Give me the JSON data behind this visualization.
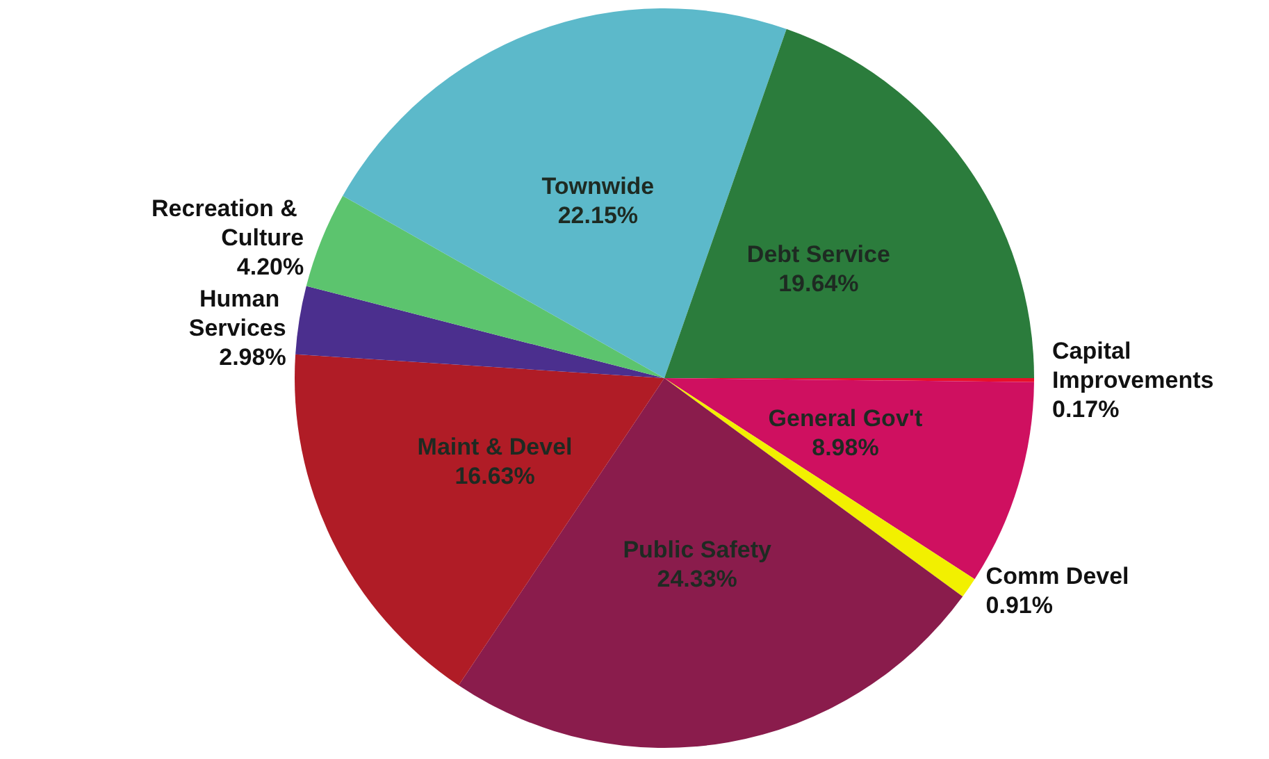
{
  "chart_data": {
    "type": "pie",
    "categories": [
      "Capital Improvements",
      "General Gov't",
      "Comm Devel",
      "Public Safety",
      "Maint & Devel",
      "Human Services",
      "Recreation & Culture",
      "Townwide",
      "Debt Service"
    ],
    "values": [
      0.17,
      8.98,
      0.91,
      24.33,
      16.63,
      2.98,
      4.2,
      22.15,
      19.64
    ],
    "colors": [
      "#e8102a",
      "#cf1060",
      "#f2f000",
      "#8a1c4c",
      "#b01c26",
      "#4b2f8e",
      "#5cc46e",
      "#5cb9ca",
      "#2b7c3c"
    ],
    "value_labels": [
      "0.17%",
      "8.98%",
      "0.91%",
      "24.33%",
      "16.63%",
      "2.98%",
      "4.20%",
      "22.15%",
      "19.64%"
    ],
    "legend": false
  }
}
